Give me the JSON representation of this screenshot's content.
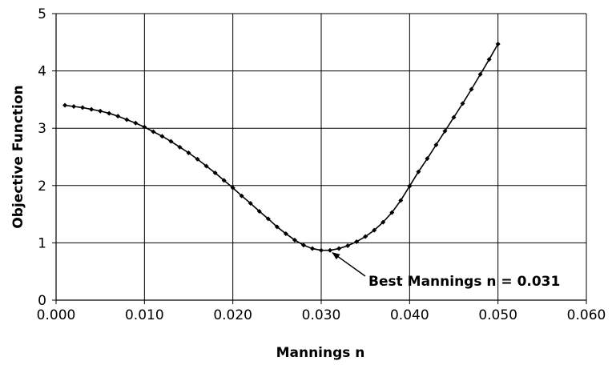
{
  "chart_data": {
    "type": "line",
    "title": "",
    "xlabel": "Mannings n",
    "ylabel": "Objective Function",
    "xlim": [
      0.0,
      0.06
    ],
    "ylim": [
      0,
      5
    ],
    "x_ticks": [
      0.0,
      0.01,
      0.02,
      0.03,
      0.04,
      0.05,
      0.06
    ],
    "x_tick_labels": [
      "0.000",
      "0.010",
      "0.020",
      "0.030",
      "0.040",
      "0.050",
      "0.060"
    ],
    "y_ticks": [
      0,
      1,
      2,
      3,
      4,
      5
    ],
    "y_tick_labels": [
      "0",
      "1",
      "2",
      "3",
      "4",
      "5"
    ],
    "grid": true,
    "legend": "none",
    "series": [
      {
        "color": "#000000",
        "marker": "diamond",
        "x": [
          0.001,
          0.002,
          0.003,
          0.004,
          0.005,
          0.006,
          0.007,
          0.008,
          0.009,
          0.01,
          0.011,
          0.012,
          0.013,
          0.014,
          0.015,
          0.016,
          0.017,
          0.018,
          0.019,
          0.02,
          0.021,
          0.022,
          0.023,
          0.024,
          0.025,
          0.026,
          0.027,
          0.028,
          0.029,
          0.03,
          0.031,
          0.032,
          0.033,
          0.034,
          0.035,
          0.036,
          0.037,
          0.038,
          0.039,
          0.04,
          0.041,
          0.042,
          0.043,
          0.044,
          0.045,
          0.046,
          0.047,
          0.048,
          0.049,
          0.05
        ],
        "y": [
          3.4,
          3.38,
          3.36,
          3.33,
          3.3,
          3.26,
          3.21,
          3.15,
          3.09,
          3.02,
          2.94,
          2.86,
          2.77,
          2.67,
          2.57,
          2.46,
          2.34,
          2.22,
          2.09,
          1.96,
          1.82,
          1.69,
          1.55,
          1.42,
          1.28,
          1.16,
          1.05,
          0.96,
          0.9,
          0.87,
          0.87,
          0.9,
          0.95,
          1.02,
          1.11,
          1.22,
          1.36,
          1.53,
          1.74,
          1.99,
          2.24,
          2.47,
          2.71,
          2.95,
          3.19,
          3.43,
          3.68,
          3.94,
          4.2,
          4.47
        ]
      }
    ],
    "annotations": [
      {
        "text": "Best Mannings n = 0.031",
        "x": 0.031,
        "y": 0.87
      }
    ]
  }
}
